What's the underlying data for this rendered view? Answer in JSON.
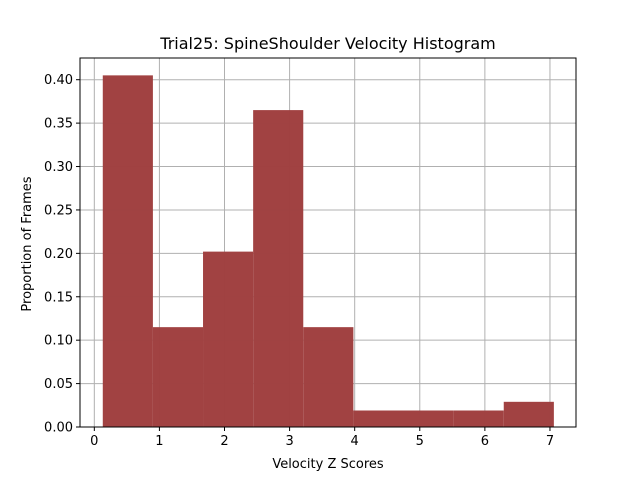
{
  "chart_data": {
    "type": "bar",
    "title": "Trial25: SpineShoulder Velocity Histogram",
    "xlabel": "Velocity Z Scores",
    "ylabel": "Proportion of Frames",
    "xlim": [
      -0.22,
      7.4
    ],
    "ylim": [
      0,
      0.425
    ],
    "x_ticks": [
      0,
      1,
      2,
      3,
      4,
      5,
      6,
      7
    ],
    "y_ticks": [
      0.0,
      0.05,
      0.1,
      0.15,
      0.2,
      0.25,
      0.3,
      0.35,
      0.4
    ],
    "y_tick_labels": [
      "0.00",
      "0.05",
      "0.10",
      "0.15",
      "0.20",
      "0.25",
      "0.30",
      "0.35",
      "0.40"
    ],
    "bin_edges": [
      0.13,
      0.9,
      1.67,
      2.44,
      3.21,
      3.98,
      4.75,
      5.52,
      6.29,
      7.06
    ],
    "values": [
      0.405,
      0.115,
      0.202,
      0.365,
      0.115,
      0.019,
      0.019,
      0.019,
      0.029
    ],
    "grid": true,
    "colors": {
      "bar": "#a04040"
    }
  }
}
